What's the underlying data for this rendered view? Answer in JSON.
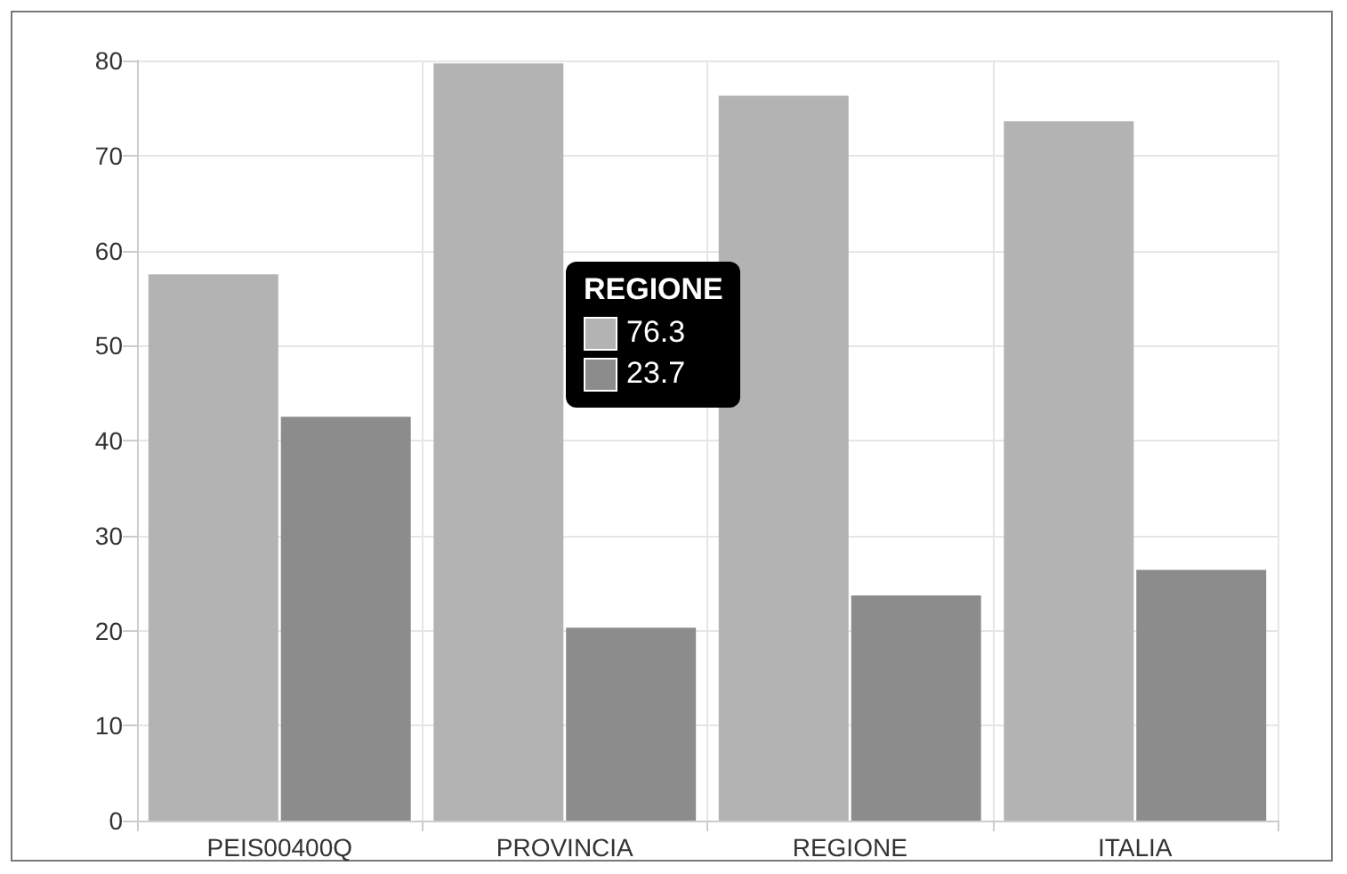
{
  "chart_data": {
    "type": "bar",
    "categories": [
      "PEIS00400Q",
      "PROVINCIA",
      "REGIONE",
      "ITALIA"
    ],
    "series": [
      {
        "color": "#b3b3b3",
        "values": [
          57.5,
          79.7,
          76.3,
          73.6
        ]
      },
      {
        "color": "#8c8c8c",
        "values": [
          42.5,
          20.3,
          23.7,
          26.4
        ]
      }
    ],
    "ylim": [
      0,
      80
    ],
    "yticks": [
      0,
      10,
      20,
      30,
      40,
      50,
      60,
      70,
      80
    ],
    "grid": true,
    "annotations": [
      "REGIONE",
      "76.3",
      "23.7"
    ]
  }
}
